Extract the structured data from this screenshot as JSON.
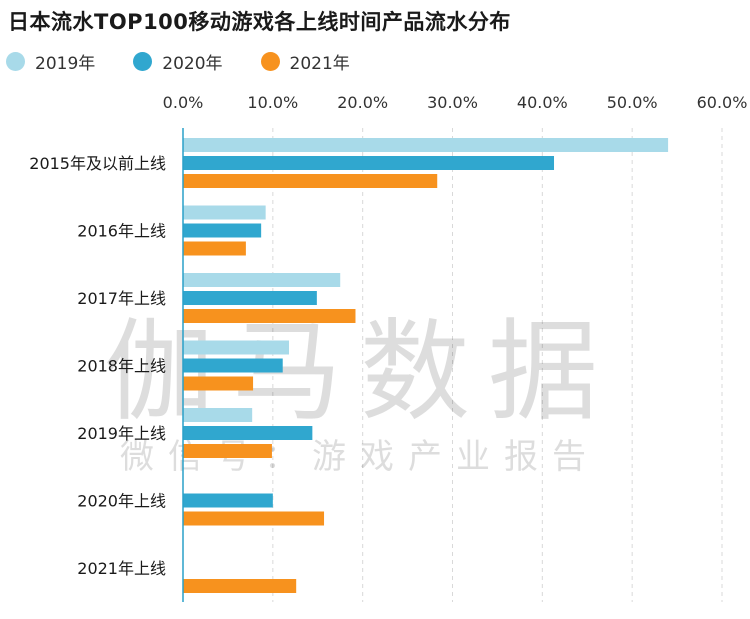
{
  "chart_data": {
    "type": "bar",
    "orientation": "horizontal",
    "title": "日本流水TOP100移动游戏各上线时间产品流水分布",
    "categories": [
      "2015年及以前上线",
      "2016年上线",
      "2017年上线",
      "2018年上线",
      "2019年上线",
      "2020年上线",
      "2021年上线"
    ],
    "series": [
      {
        "name": "2019年",
        "color": "#a8dae9",
        "values": [
          54.0,
          9.2,
          17.5,
          11.8,
          7.7,
          null,
          null
        ]
      },
      {
        "name": "2020年",
        "color": "#30a7cf",
        "values": [
          41.3,
          8.7,
          14.9,
          11.1,
          14.4,
          10.0,
          null
        ]
      },
      {
        "name": "2021年",
        "color": "#f7921e",
        "values": [
          28.3,
          7.0,
          19.2,
          7.8,
          9.9,
          15.7,
          12.6
        ]
      }
    ],
    "xlim": [
      0,
      60
    ],
    "ticks": [
      0,
      10,
      20,
      30,
      40,
      50,
      60
    ],
    "tick_labels": [
      "0.0%",
      "10.0%",
      "20.0%",
      "30.0%",
      "40.0%",
      "50.0%",
      "60.0%"
    ],
    "grid": "vertical-dashed",
    "legend_position": "top-left"
  },
  "watermark": {
    "line1": "伽马数据",
    "line2": "微信号：游戏产业报告"
  }
}
